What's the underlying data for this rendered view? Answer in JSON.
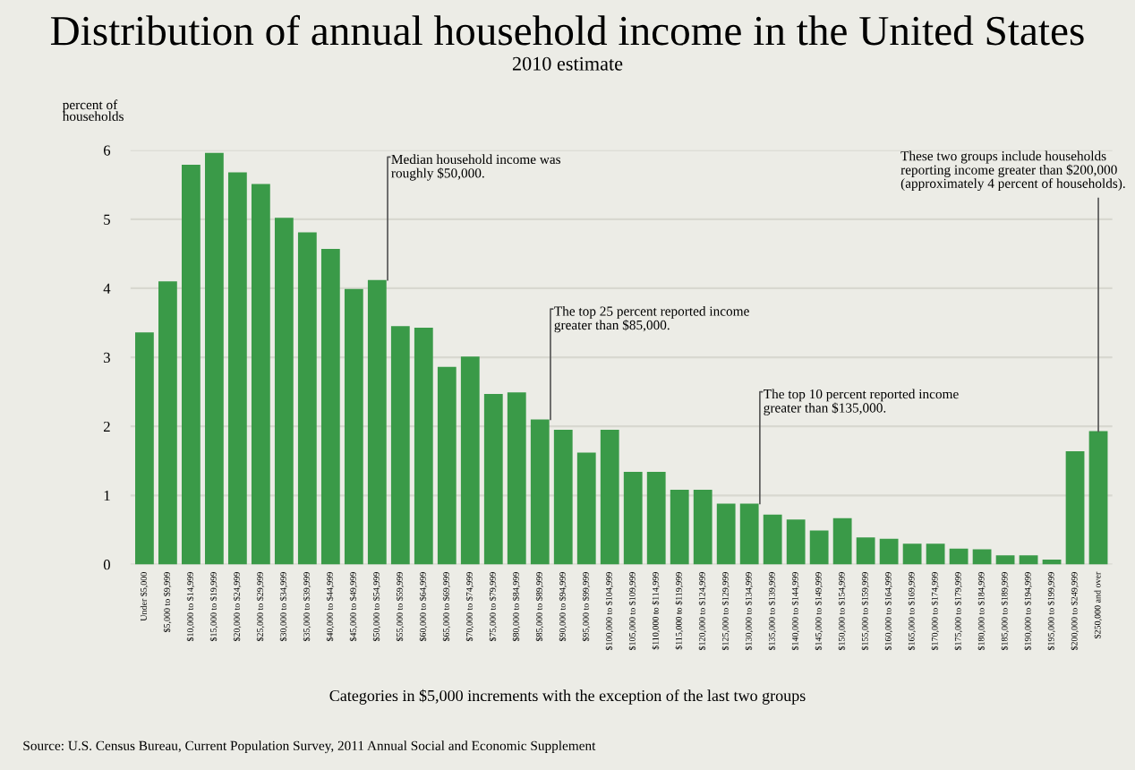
{
  "chart_data": {
    "type": "bar",
    "title": "Distribution of annual household income in the United States",
    "subtitle": "2010 estimate",
    "ylabel": "percent of\nhouseholds",
    "xlabel": "Categories in $5,000 increments with the exception of the last two groups",
    "categories": [
      "Under $5,000",
      "$5,000 to $9,999",
      "$10,000 to $14,999",
      "$15,000 to $19,999",
      "$20,000 to $24,999",
      "$25,000 to $29,999",
      "$30,000 to $34,999",
      "$35,000 to $39,999",
      "$40,000 to $44,999",
      "$45,000 to $49,999",
      "$50,000 to $54,999",
      "$55,000 to $59,999",
      "$60,000 to $64,999",
      "$65,000 to $69,999",
      "$70,000 to $74,999",
      "$75,000 to $79,999",
      "$80,000 to $84,999",
      "$85,000 to $89,999",
      "$90,000 to $94,999",
      "$95,000 to $99,999",
      "$100,000 to $104,999",
      "$105,000 to $109,999",
      "$110,000 to $114,999",
      "$115,000 to $119,999",
      "$120,000 to $124,999",
      "$125,000 to $129,999",
      "$130,000 to $134,999",
      "$135,000 to $139,999",
      "$140,000 to $144,999",
      "$145,000 to $149,999",
      "$150,000 to $154,999",
      "$155,000 to $159,999",
      "$160,000 to $164,999",
      "$165,000 to $169,999",
      "$170,000 to $174,999",
      "$175,000 to $179,999",
      "$180,000 to $184,999",
      "$185,000 to $189,999",
      "$190,000 to $194,999",
      "$195,000 to $199,999",
      "$200,000 to $249,999",
      "$250,000 and over"
    ],
    "values": [
      3.36,
      4.1,
      5.79,
      5.96,
      5.68,
      5.51,
      5.02,
      4.81,
      4.57,
      3.99,
      4.12,
      3.45,
      3.43,
      2.86,
      3.01,
      2.47,
      2.49,
      2.1,
      1.95,
      1.62,
      1.95,
      1.34,
      1.34,
      1.08,
      1.08,
      0.88,
      0.88,
      0.72,
      0.65,
      0.49,
      0.67,
      0.39,
      0.37,
      0.3,
      0.3,
      0.23,
      0.22,
      0.13,
      0.13,
      0.07,
      1.64,
      1.93
    ],
    "color": "#3a9a48",
    "ylim": [
      0,
      6
    ],
    "yticks": [
      0,
      1,
      2,
      3,
      4,
      5,
      6
    ],
    "grid": "y",
    "annotations": [
      {
        "text": "Median household income was\nroughly $50,000.",
        "x": "$50,000 to $54,999",
        "y": 4.12
      },
      {
        "text": "The top 25 percent reported income\ngreater than $85,000.",
        "x": "$85,000 to $89,999",
        "y": 2.1
      },
      {
        "text": "The top 10 percent reported income\ngreater than $135,000.",
        "x": "$130,000 to $134,999",
        "y": 0.88
      },
      {
        "text": "These two groups include households\nreporting income greater than $200,000\n(approximately 4 percent of households).",
        "x": "$250,000 and over",
        "y": 1.93
      },
      "Source: U.S. Census Bureau, Current Population Survey, 2011 Annual Social and Economic Supplement"
    ]
  }
}
